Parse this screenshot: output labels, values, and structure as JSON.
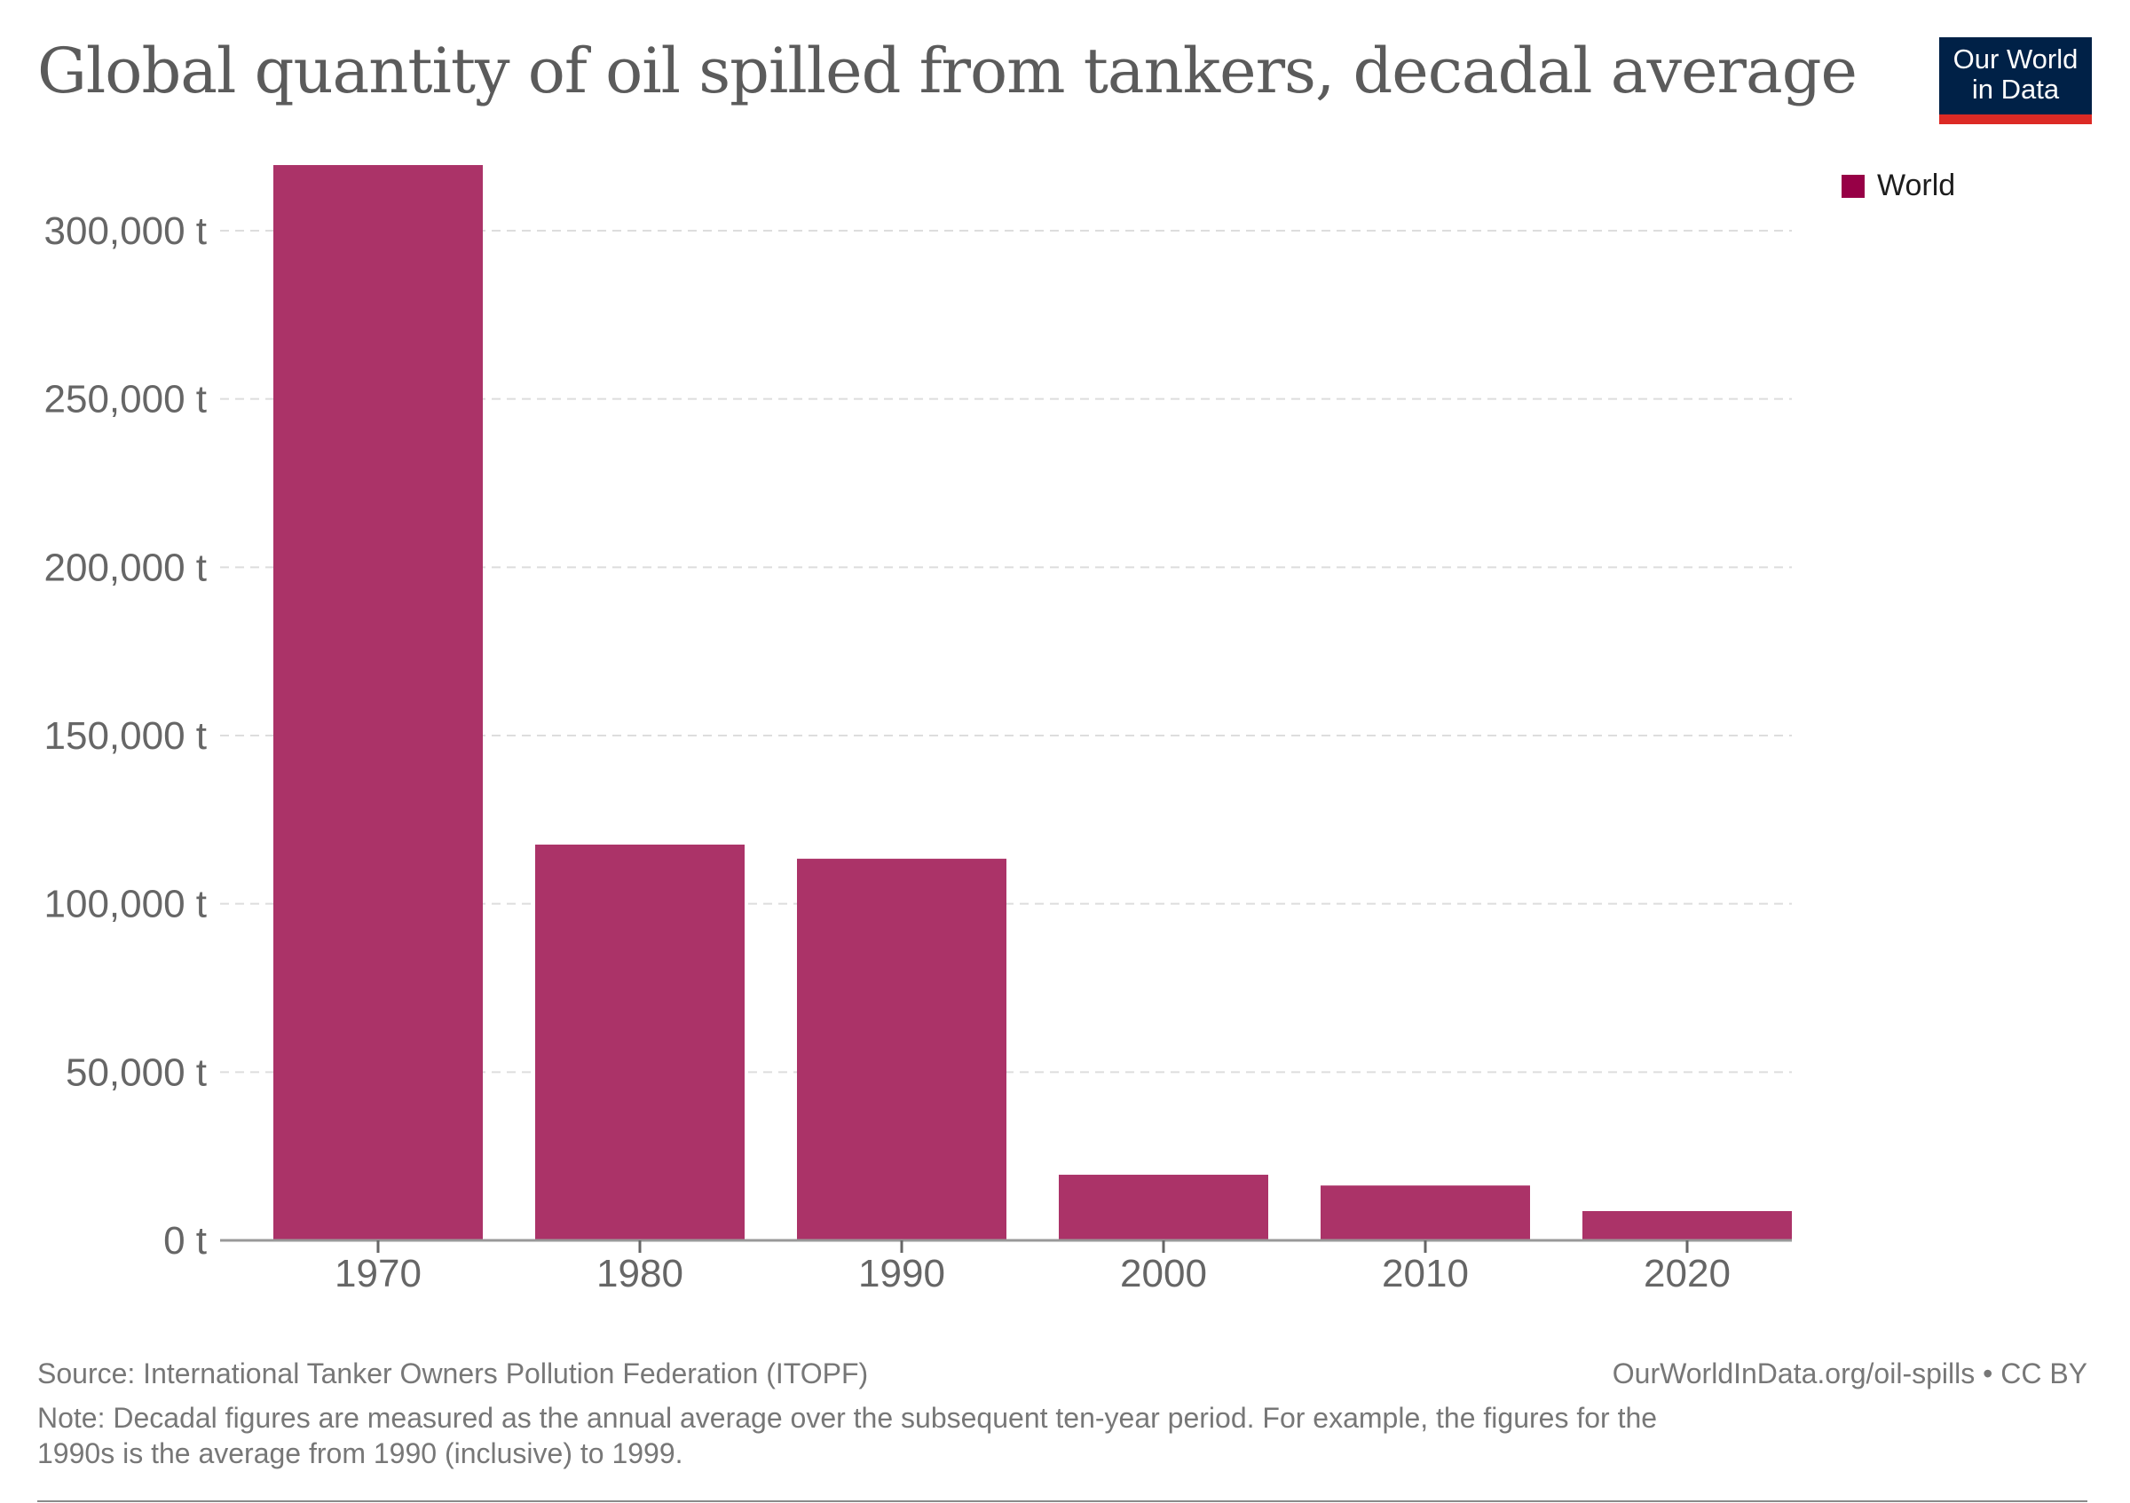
{
  "header": {
    "title": "Global quantity of oil spilled from tankers, decadal average",
    "logo_line1": "Our World",
    "logo_line2": "in Data"
  },
  "legend": {
    "items": [
      {
        "label": "World",
        "color": "#970046"
      }
    ]
  },
  "footer": {
    "source": "Source: International Tanker Owners Pollution Federation (ITOPF)",
    "license": "OurWorldInData.org/oil-spills • CC BY",
    "note": "Note: Decadal figures are measured as the annual average over the subsequent ten-year period. For example, the figures for the 1990s is the average from 1990 (inclusive) to 1999."
  },
  "chart_data": {
    "type": "bar",
    "title": "Global quantity of oil spilled from tankers, decadal average",
    "xlabel": "",
    "ylabel": "",
    "unit": "t",
    "categories": [
      "1970",
      "1980",
      "1990",
      "2000",
      "2010",
      "2020"
    ],
    "series": [
      {
        "name": "World",
        "color": "#ab3368",
        "values": [
          319500,
          117600,
          113400,
          19500,
          16300,
          8700
        ]
      }
    ],
    "ylim": [
      0,
      300000
    ],
    "yticks": [
      0,
      50000,
      100000,
      150000,
      200000,
      250000,
      300000
    ],
    "ytick_labels": [
      "0 t",
      "50,000 t",
      "100,000 t",
      "150,000 t",
      "200,000 t",
      "250,000 t",
      "300,000 t"
    ],
    "grid": true,
    "legend_position": "top-right"
  }
}
